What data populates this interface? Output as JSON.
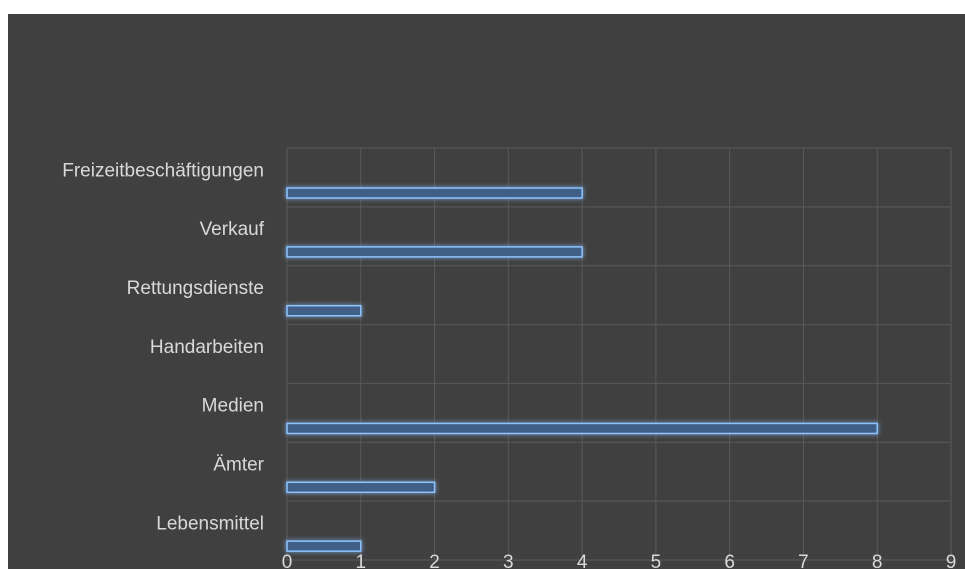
{
  "chart_data": {
    "type": "bar",
    "orientation": "horizontal",
    "title": "",
    "xlabel": "",
    "ylabel": "",
    "categories": [
      "Freizeitbeschäftigungen",
      "Verkauf",
      "Rettungsdienste",
      "Handarbeiten",
      "Medien",
      "Ämter",
      "Lebensmittel"
    ],
    "values": [
      4,
      4,
      1,
      0,
      8,
      2,
      1
    ],
    "xlim": [
      0,
      9
    ],
    "x_ticks": [
      "0",
      "1",
      "2",
      "3",
      "4",
      "5",
      "6",
      "7",
      "8",
      "9"
    ],
    "grid": true,
    "legend": "none",
    "colors": {
      "background": "#404040",
      "bar_fill": "#3f5f86",
      "bar_outline": "#8fc3ff",
      "grid": "#5a5a5a",
      "text": "#d9d9d9"
    }
  }
}
